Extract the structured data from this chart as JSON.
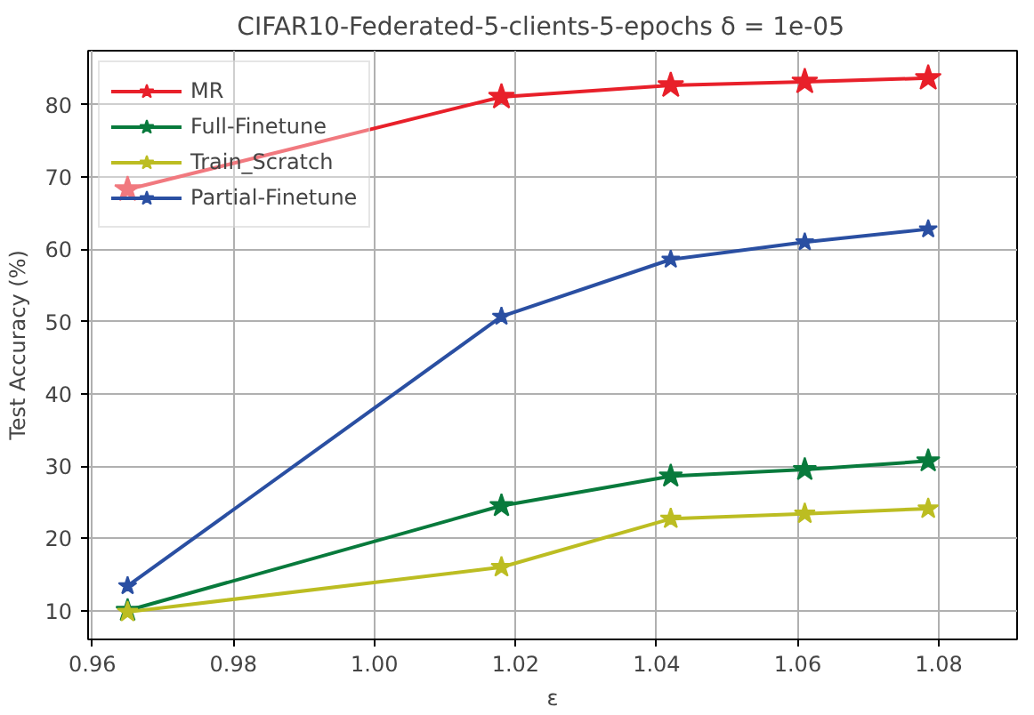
{
  "chart_data": {
    "type": "line",
    "title": "CIFAR10-Federated-5-clients-5-epochs    δ = 1e-05",
    "xlabel": "ε",
    "ylabel": "Test Accuracy (%)",
    "x": [
      0.965,
      1.018,
      1.042,
      1.061,
      1.0785
    ],
    "series": [
      {
        "name": "MR",
        "color": "#e8202a",
        "values": [
          68.3,
          81.1,
          82.7,
          83.2,
          83.7
        ]
      },
      {
        "name": "Full-Finetune",
        "color": "#087a3c",
        "values": [
          10.0,
          24.5,
          28.6,
          29.5,
          30.7
        ]
      },
      {
        "name": "Train_Scratch",
        "color": "#bcbd22",
        "values": [
          9.8,
          16.0,
          22.7,
          23.4,
          24.1
        ]
      },
      {
        "name": "Partial-Finetune",
        "color": "#2a4fa2",
        "values": [
          13.4,
          50.7,
          58.6,
          61.0,
          62.8
        ]
      }
    ],
    "xlim": [
      0.9594,
      1.0911
    ],
    "ylim": [
      6,
      87.5
    ],
    "xticks": [
      {
        "value": 0.96,
        "label": "0.96"
      },
      {
        "value": 0.98,
        "label": "0.98"
      },
      {
        "value": 1.0,
        "label": "1.00"
      },
      {
        "value": 1.02,
        "label": "1.02"
      },
      {
        "value": 1.04,
        "label": "1.04"
      },
      {
        "value": 1.06,
        "label": "1.06"
      },
      {
        "value": 1.08,
        "label": "1.08"
      }
    ],
    "yticks": [
      10,
      20,
      30,
      40,
      50,
      60,
      70,
      80
    ],
    "grid": true,
    "legend": "top left",
    "marker": "star",
    "line_style": "solid"
  }
}
